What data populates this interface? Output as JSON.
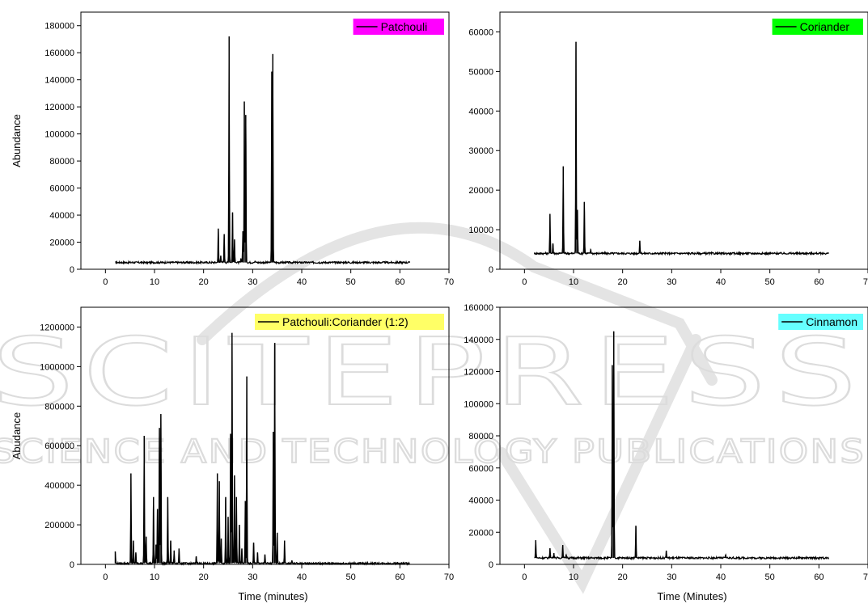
{
  "watermark": {
    "line1": "SCITEPRESS",
    "line2": "SCIENCE AND TECHNOLOGY PUBLICATIONS",
    "color": "#d9d9d9"
  },
  "chart_data": [
    {
      "type": "line",
      "legend": {
        "label": "Patchouli",
        "color": "#ff00ff",
        "position": "top-right"
      },
      "ylabel": "Abundance",
      "xlabel": "",
      "xlim": [
        -5,
        70
      ],
      "ylim": [
        0,
        190000
      ],
      "xticks": [
        0,
        10,
        20,
        30,
        40,
        50,
        60,
        70
      ],
      "yticks": [
        0,
        20000,
        40000,
        60000,
        80000,
        100000,
        120000,
        140000,
        160000,
        180000
      ],
      "baseline": 5000,
      "x_range": [
        2,
        62
      ],
      "peaks": [
        [
          23.0,
          30000
        ],
        [
          23.5,
          10000
        ],
        [
          24.2,
          26000
        ],
        [
          25.2,
          172000
        ],
        [
          25.9,
          42000
        ],
        [
          26.3,
          22000
        ],
        [
          27.6,
          8000
        ],
        [
          28.0,
          28000
        ],
        [
          28.3,
          124000
        ],
        [
          28.6,
          114000
        ],
        [
          30.5,
          6000
        ],
        [
          33.9,
          146000
        ],
        [
          34.1,
          159000
        ]
      ]
    },
    {
      "type": "line",
      "legend": {
        "label": "Coriander",
        "color": "#00ff00",
        "position": "top-right"
      },
      "ylabel": "",
      "xlabel": "",
      "xlim": [
        -5,
        70
      ],
      "ylim": [
        0,
        65000
      ],
      "xticks": [
        0,
        10,
        20,
        30,
        40,
        50,
        60,
        70
      ],
      "yticks": [
        0,
        10000,
        20000,
        30000,
        40000,
        50000,
        60000
      ],
      "baseline": 4000,
      "x_range": [
        2,
        62
      ],
      "peaks": [
        [
          5.2,
          14000
        ],
        [
          5.8,
          6500
        ],
        [
          7.9,
          26000
        ],
        [
          10.5,
          57500
        ],
        [
          10.8,
          15000
        ],
        [
          12.2,
          17000
        ],
        [
          13.5,
          5000
        ],
        [
          23.5,
          7200
        ]
      ]
    },
    {
      "type": "line",
      "legend": {
        "label": "Patchouli:Coriander (1:2)",
        "color": "#ffff66",
        "position": "top-right"
      },
      "ylabel": "Abudance",
      "xlabel": "Time (minutes)",
      "xlim": [
        -5,
        70
      ],
      "ylim": [
        0,
        1300000
      ],
      "xticks": [
        0,
        10,
        20,
        30,
        40,
        50,
        60,
        70
      ],
      "yticks": [
        0,
        200000,
        400000,
        600000,
        800000,
        1000000,
        1200000
      ],
      "baseline": 5000,
      "x_range": [
        2,
        62
      ],
      "peaks": [
        [
          2.0,
          65000
        ],
        [
          5.2,
          460000
        ],
        [
          5.7,
          120000
        ],
        [
          6.2,
          60000
        ],
        [
          7.9,
          650000
        ],
        [
          8.3,
          140000
        ],
        [
          9.8,
          340000
        ],
        [
          10.3,
          100000
        ],
        [
          10.6,
          280000
        ],
        [
          11.0,
          690000
        ],
        [
          11.3,
          760000
        ],
        [
          12.7,
          340000
        ],
        [
          13.3,
          120000
        ],
        [
          14.0,
          70000
        ],
        [
          15.0,
          80000
        ],
        [
          18.5,
          40000
        ],
        [
          22.8,
          460000
        ],
        [
          23.2,
          420000
        ],
        [
          23.6,
          130000
        ],
        [
          24.5,
          340000
        ],
        [
          25.0,
          240000
        ],
        [
          25.5,
          660000
        ],
        [
          25.8,
          1170000
        ],
        [
          26.3,
          450000
        ],
        [
          26.7,
          340000
        ],
        [
          27.3,
          200000
        ],
        [
          27.8,
          80000
        ],
        [
          28.5,
          320000
        ],
        [
          28.8,
          950000
        ],
        [
          30.2,
          110000
        ],
        [
          31.0,
          60000
        ],
        [
          32.5,
          50000
        ],
        [
          34.2,
          670000
        ],
        [
          34.5,
          1120000
        ],
        [
          35.0,
          160000
        ],
        [
          36.5,
          120000
        ],
        [
          38.0,
          20000
        ]
      ]
    },
    {
      "type": "line",
      "legend": {
        "label": "Cinnamon",
        "color": "#66ffff",
        "position": "top-right"
      },
      "ylabel": "",
      "xlabel": "Time (Minutes)",
      "xlim": [
        -5,
        70
      ],
      "ylim": [
        0,
        160000
      ],
      "xticks": [
        0,
        10,
        20,
        30,
        40,
        50,
        60,
        70
      ],
      "yticks": [
        0,
        20000,
        40000,
        60000,
        80000,
        100000,
        120000,
        140000,
        160000
      ],
      "baseline": 4000,
      "x_range": [
        2,
        62
      ],
      "peaks": [
        [
          2.3,
          15000
        ],
        [
          5.2,
          10000
        ],
        [
          6.0,
          7000
        ],
        [
          7.8,
          12000
        ],
        [
          8.5,
          6000
        ],
        [
          17.9,
          124000
        ],
        [
          18.2,
          145000
        ],
        [
          22.7,
          24000
        ],
        [
          28.9,
          8500
        ],
        [
          41.0,
          6000
        ]
      ]
    }
  ]
}
